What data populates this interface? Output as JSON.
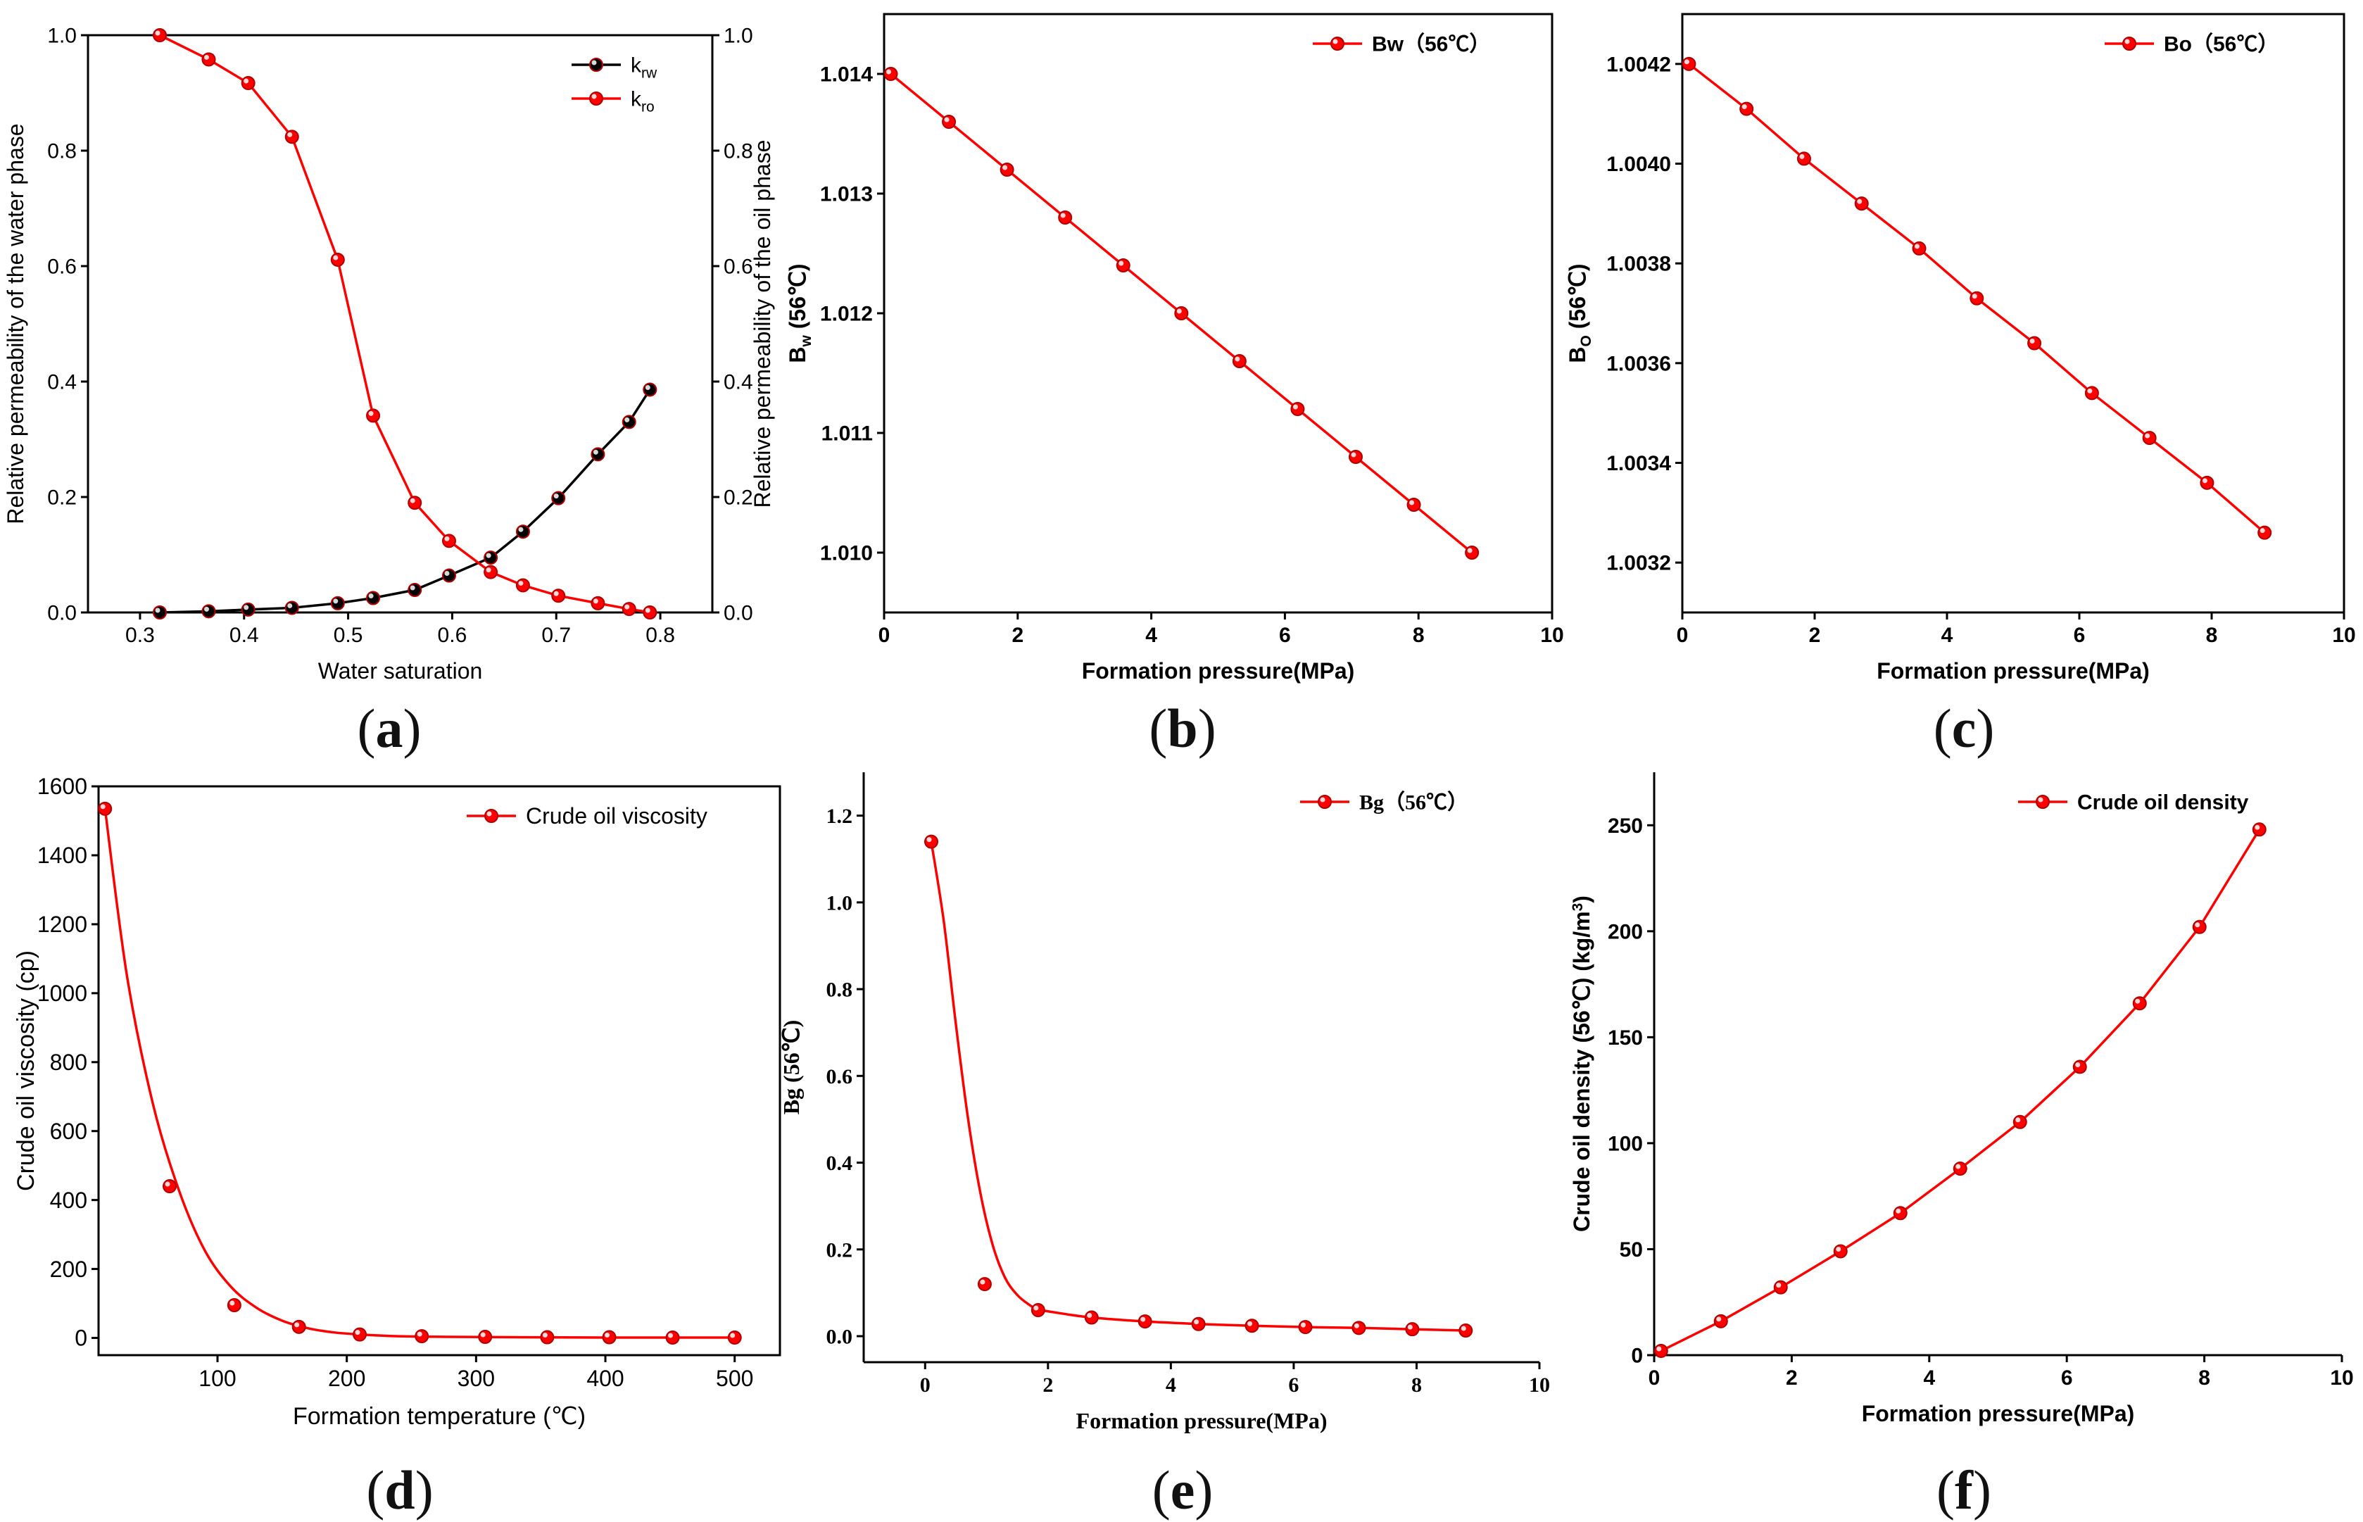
{
  "panel_labels": [
    "a",
    "b",
    "c",
    "d",
    "e",
    "f"
  ],
  "colors": {
    "red": "#ff0000",
    "black": "#000000",
    "axis": "#000000"
  },
  "chart_data": [
    {
      "id": "a",
      "type": "line",
      "xlabel": "Water saturation",
      "ylabel": "Relative permeability of the water phase",
      "y2label": "Relative permeability of the oil phase",
      "xlim": [
        0.25,
        0.85
      ],
      "ylim": [
        0,
        1.0
      ],
      "y2lim": [
        0,
        1.0
      ],
      "xticks": [
        0.3,
        0.4,
        0.5,
        0.6,
        0.7,
        0.8
      ],
      "xtick_labels": [
        "0.3",
        "0.4",
        "0.5",
        "0.6",
        "0.7",
        "0.8"
      ],
      "yticks": [
        0,
        0.2,
        0.4,
        0.6,
        0.8,
        1.0
      ],
      "ytick_labels": [
        "0.0",
        "0.2",
        "0.4",
        "0.6",
        "0.8",
        "1.0"
      ],
      "legend_position": "top-right",
      "series": [
        {
          "name": "k_rw",
          "label_main": "k",
          "label_sub": "rw",
          "color": "#000000",
          "axis": "left",
          "x": [
            0.319,
            0.366,
            0.404,
            0.446,
            0.49,
            0.524,
            0.564,
            0.597,
            0.637,
            0.668,
            0.702,
            0.74,
            0.77,
            0.79
          ],
          "y": [
            0.0,
            0.002,
            0.005,
            0.008,
            0.016,
            0.025,
            0.039,
            0.064,
            0.095,
            0.14,
            0.198,
            0.274,
            0.33,
            0.386
          ]
        },
        {
          "name": "k_ro",
          "label_main": "k",
          "label_sub": "ro",
          "color": "#ff0000",
          "axis": "right",
          "x": [
            0.319,
            0.366,
            0.404,
            0.446,
            0.49,
            0.524,
            0.564,
            0.597,
            0.637,
            0.668,
            0.702,
            0.74,
            0.77,
            0.79
          ],
          "y": [
            1.0,
            0.958,
            0.917,
            0.824,
            0.611,
            0.341,
            0.19,
            0.124,
            0.07,
            0.047,
            0.029,
            0.016,
            0.006,
            0.0
          ]
        }
      ]
    },
    {
      "id": "b",
      "type": "line",
      "xlabel": "Formation pressure(MPa)",
      "ylabel_main": "B",
      "ylabel_sub": "w",
      "ylabel_suffix": " (56℃)",
      "xlim": [
        0,
        10
      ],
      "ylim": [
        1.0095,
        1.0145
      ],
      "xticks": [
        0,
        2,
        4,
        6,
        8,
        10
      ],
      "xtick_labels": [
        "0",
        "2",
        "4",
        "6",
        "8",
        "10"
      ],
      "yticks": [
        1.01,
        1.011,
        1.012,
        1.013,
        1.014
      ],
      "ytick_labels": [
        "1.010",
        "1.011",
        "1.012",
        "1.013",
        "1.014"
      ],
      "legend_position": "top-right",
      "series": [
        {
          "name": "Bw（56℃）",
          "color": "#ff0000",
          "x": [
            0.1,
            0.97,
            1.84,
            2.71,
            3.58,
            4.45,
            5.32,
            6.19,
            7.06,
            7.93,
            8.8
          ],
          "y": [
            1.014,
            1.0136,
            1.0132,
            1.0128,
            1.0124,
            1.012,
            1.0116,
            1.0112,
            1.0108,
            1.0104,
            1.01
          ]
        }
      ]
    },
    {
      "id": "c",
      "type": "line",
      "xlabel": "Formation pressure(MPa)",
      "ylabel_main": "B",
      "ylabel_sub": "O",
      "ylabel_suffix": " (56℃)",
      "xlim": [
        0,
        10
      ],
      "ylim": [
        1.0031,
        1.0043
      ],
      "xticks": [
        0,
        2,
        4,
        6,
        8,
        10
      ],
      "xtick_labels": [
        "0",
        "2",
        "4",
        "6",
        "8",
        "10"
      ],
      "yticks": [
        1.0032,
        1.0034,
        1.0036,
        1.0038,
        1.004,
        1.0042
      ],
      "ytick_labels": [
        "1.0032",
        "1.0034",
        "1.0036",
        "1.0038",
        "1.0040",
        "1.0042"
      ],
      "legend_position": "top-right",
      "series": [
        {
          "name": "Bo（56℃）",
          "color": "#ff0000",
          "x": [
            0.1,
            0.97,
            1.84,
            2.71,
            3.58,
            4.45,
            5.32,
            6.19,
            7.06,
            7.93,
            8.8
          ],
          "y": [
            1.0042,
            1.00411,
            1.00401,
            1.00392,
            1.00383,
            1.00373,
            1.00364,
            1.00354,
            1.00345,
            1.00336,
            1.00326
          ]
        }
      ]
    },
    {
      "id": "d",
      "type": "line",
      "xlabel": "Formation temperature (℃)",
      "ylabel": "Crude oil viscosity (cp)",
      "xlim": [
        8,
        535
      ],
      "ylim": [
        -50,
        1600
      ],
      "xticks": [
        100,
        200,
        300,
        400,
        500
      ],
      "xtick_labels": [
        "100",
        "200",
        "300",
        "400",
        "500"
      ],
      "yticks": [
        0,
        200,
        400,
        600,
        800,
        1000,
        1200,
        1400,
        1600
      ],
      "ytick_labels": [
        "0",
        "200",
        "400",
        "600",
        "800",
        "1000",
        "1200",
        "1400",
        "1600"
      ],
      "legend_position": "top-right",
      "series": [
        {
          "name": "Crude oil viscosity",
          "color": "#ff0000",
          "x": [
            13,
            63,
            113,
            163,
            210,
            258,
            307,
            355,
            403,
            452,
            500
          ],
          "y": [
            1535,
            440,
            95,
            32,
            10,
            5,
            3,
            2,
            2,
            1,
            1
          ],
          "curve_x": [
            13,
            30,
            50,
            70,
            90,
            110,
            130,
            150,
            170,
            190,
            210,
            240,
            280,
            330,
            400,
            500
          ],
          "curve_y": [
            1535,
            1050,
            680,
            430,
            255,
            150,
            88,
            50,
            28,
            16,
            10,
            5,
            3,
            2,
            1,
            1
          ]
        }
      ]
    },
    {
      "id": "e",
      "type": "line",
      "xlabel": "Formation pressure(MPa)",
      "ylabel": "Bg (56℃)",
      "xlim": [
        -1,
        10
      ],
      "ylim": [
        -0.06,
        1.3
      ],
      "xticks": [
        0,
        2,
        4,
        6,
        8,
        10
      ],
      "xtick_labels": [
        "0",
        "2",
        "4",
        "6",
        "8",
        "10"
      ],
      "yticks": [
        0.0,
        0.2,
        0.4,
        0.6,
        0.8,
        1.0,
        1.2
      ],
      "ytick_labels": [
        "0.0",
        "0.2",
        "0.4",
        "0.6",
        "0.8",
        "1.0",
        "1.2"
      ],
      "legend_position": "top-right",
      "series": [
        {
          "name": "Bg（56℃）",
          "color": "#ff0000",
          "x": [
            0.1,
            0.97,
            1.84,
            2.71,
            3.58,
            4.45,
            5.32,
            6.19,
            7.06,
            7.93,
            8.8
          ],
          "y": [
            1.14,
            0.12,
            0.06,
            0.043,
            0.034,
            0.028,
            0.024,
            0.021,
            0.019,
            0.016,
            0.013
          ],
          "curve_x": [
            0.1,
            0.3,
            0.5,
            0.7,
            0.9,
            1.1,
            1.3,
            1.5,
            1.7,
            1.84,
            2.1,
            2.71,
            3.58,
            4.45,
            5.32,
            6.19,
            7.06,
            7.93,
            8.8
          ],
          "curve_y": [
            1.14,
            0.96,
            0.72,
            0.5,
            0.33,
            0.21,
            0.135,
            0.095,
            0.072,
            0.062,
            0.055,
            0.043,
            0.034,
            0.028,
            0.024,
            0.021,
            0.019,
            0.016,
            0.013
          ]
        }
      ]
    },
    {
      "id": "f",
      "type": "line",
      "xlabel": "Formation pressure(MPa)",
      "ylabel": "Crude oil density (56℃) (kg/m³)",
      "ylabel_main": "Crude oil density (56℃) (kg/m",
      "ylabel_sup": "3",
      "ylabel_suffix": ")",
      "xlim": [
        0,
        10
      ],
      "ylim": [
        0,
        275
      ],
      "xticks": [
        0,
        2,
        4,
        6,
        8,
        10
      ],
      "xtick_labels": [
        "0",
        "2",
        "4",
        "6",
        "8",
        "10"
      ],
      "yticks": [
        0,
        50,
        100,
        150,
        200,
        250
      ],
      "ytick_labels": [
        "0",
        "50",
        "100",
        "150",
        "200",
        "250"
      ],
      "legend_position": "top-right",
      "series": [
        {
          "name": "Crude oil density",
          "color": "#ff0000",
          "x": [
            0.1,
            0.97,
            1.84,
            2.71,
            3.58,
            4.45,
            5.32,
            6.19,
            7.06,
            7.93,
            8.8
          ],
          "y": [
            2,
            16,
            32,
            49,
            67,
            88,
            110,
            136,
            166,
            202,
            248
          ]
        }
      ]
    }
  ]
}
